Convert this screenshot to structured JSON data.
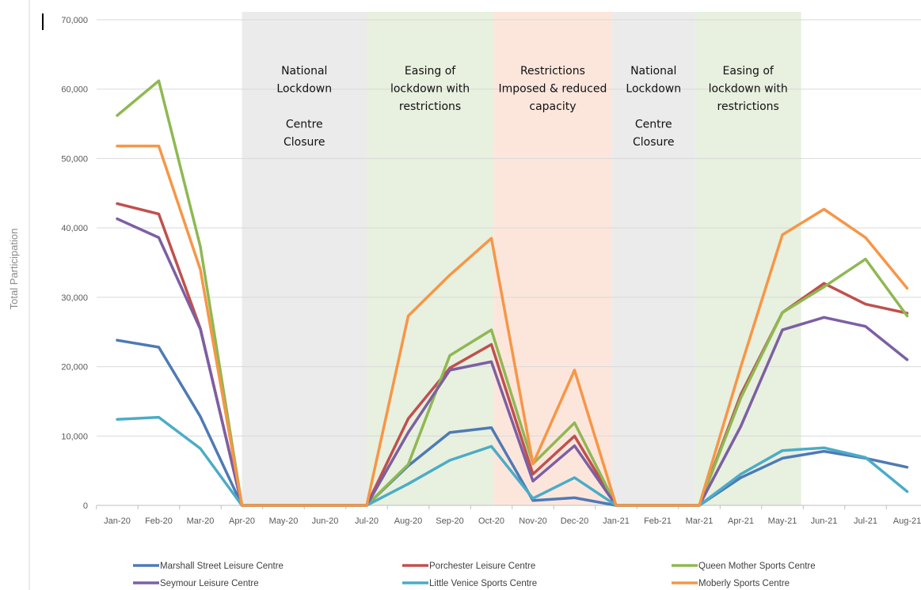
{
  "chart_data": {
    "type": "line",
    "ylabel": "Total Participation",
    "xlabel": "",
    "ylim": [
      0,
      70000
    ],
    "y_ticks": [
      "0",
      "10,000",
      "20,000",
      "30,000",
      "40,000",
      "50,000",
      "60,000",
      "70,000"
    ],
    "y_tick_values": [
      0,
      10000,
      20000,
      30000,
      40000,
      50000,
      60000,
      70000
    ],
    "grid": "horizontal",
    "legend_position": "bottom",
    "categories": [
      "Jan-20",
      "Feb-20",
      "Mar-20",
      "Apr-20",
      "May-20",
      "Jun-20",
      "Jul-20",
      "Aug-20",
      "Sep-20",
      "Oct-20",
      "Nov-20",
      "Dec-20",
      "Jan-21",
      "Feb-21",
      "Mar-21",
      "Apr-21",
      "May-21",
      "Jun-21",
      "Jul-21",
      "Aug-21"
    ],
    "category_labels": [
      "Jan-20",
      "Feb-20",
      "Mar-20",
      "Apr-20",
      "May-20",
      "Jun-20",
      "Jul-20",
      "Aug-20",
      "Sep-20",
      "Oct-20",
      "Nov-20",
      "Dec-20",
      "Jan-21",
      "Feb-21",
      "Mar-21",
      "Apr-21",
      "May-21",
      "Jun-21",
      "Jul-21",
      "Aug-21"
    ],
    "bands": [
      {
        "from": 3.0,
        "to": 6.0,
        "color": "#ebebeb",
        "lines": [
          "National",
          "Lockdown",
          "",
          "Centre",
          "Closure"
        ]
      },
      {
        "from": 6.0,
        "to": 9.05,
        "color": "#e8f0df",
        "lines": [
          "Easing of",
          "lockdown with",
          "restrictions"
        ]
      },
      {
        "from": 9.05,
        "to": 11.9,
        "color": "#fce6dc",
        "lines": [
          "Restrictions",
          "Imposed & reduced",
          "capacity"
        ]
      },
      {
        "from": 11.9,
        "to": 13.9,
        "color": "#ebebeb",
        "lines": [
          "National",
          "Lockdown",
          "",
          "Centre",
          "Closure"
        ]
      },
      {
        "from": 13.9,
        "to": 16.45,
        "color": "#e8f0df",
        "lines": [
          "Easing of",
          "lockdown with",
          "restrictions"
        ]
      }
    ],
    "series": [
      {
        "name": "Marshall Street Leisure Centre",
        "color": "#4e7ab5",
        "values": [
          23800,
          22800,
          12800,
          0,
          0,
          0,
          0,
          5700,
          10500,
          11200,
          700,
          1100,
          0,
          0,
          0,
          4000,
          6800,
          7800,
          6800,
          5500
        ]
      },
      {
        "name": "Porchester Leisure Centre",
        "color": "#c0504d",
        "values": [
          43500,
          42000,
          25500,
          0,
          0,
          0,
          0,
          12500,
          19800,
          23200,
          4500,
          10000,
          0,
          0,
          0,
          16000,
          27800,
          32000,
          29000,
          27700
        ]
      },
      {
        "name": "Queen Mother Sports Centre",
        "color": "#8fb852",
        "values": [
          56200,
          61200,
          37300,
          0,
          0,
          0,
          0,
          5900,
          21600,
          25300,
          6000,
          11900,
          0,
          0,
          0,
          15500,
          27800,
          31500,
          35500,
          27300
        ]
      },
      {
        "name": "Seymour Leisure Centre",
        "color": "#7c5fa3",
        "values": [
          41300,
          38600,
          25400,
          0,
          0,
          0,
          0,
          10500,
          19500,
          20700,
          3500,
          8600,
          0,
          0,
          0,
          11400,
          25300,
          27100,
          25800,
          21000
        ]
      },
      {
        "name": "Little Venice Sports Centre",
        "color": "#4bacc6",
        "values": [
          12400,
          12700,
          8200,
          0,
          0,
          0,
          0,
          3100,
          6500,
          8500,
          1000,
          4000,
          0,
          0,
          0,
          4500,
          7900,
          8300,
          6900,
          2000
        ]
      },
      {
        "name": "Moberly Sports Centre",
        "color": "#f79646",
        "values": [
          51800,
          51800,
          34000,
          0,
          0,
          0,
          0,
          27300,
          33200,
          38500,
          6000,
          19500,
          0,
          0,
          0,
          20000,
          39000,
          42700,
          38600,
          31300
        ]
      }
    ]
  }
}
